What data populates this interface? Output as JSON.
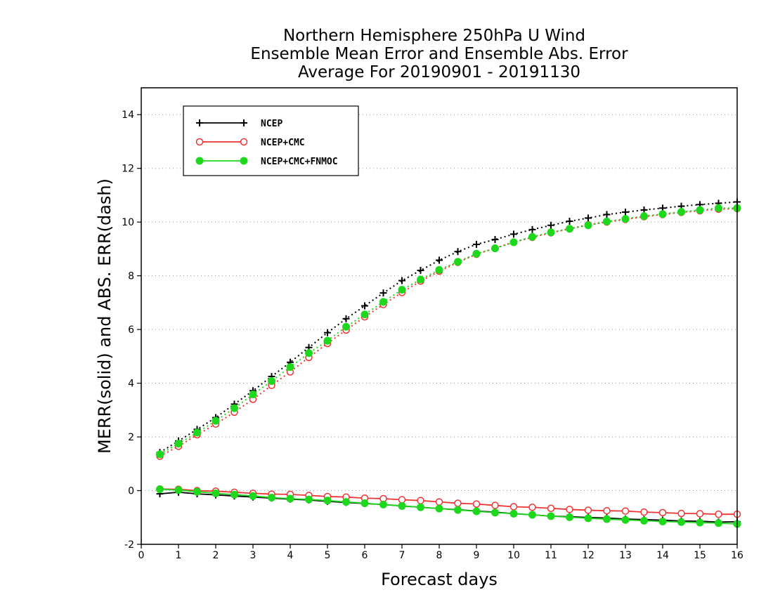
{
  "chart_data": {
    "type": "line",
    "title": [
      "Northern Hemisphere 250hPa U Wind",
      "Ensemble Mean Error and Ensemble Abs. Error",
      "Average For 20190901 - 20191130"
    ],
    "xlabel": "Forecast days",
    "ylabel": "MERR(solid) and ABS. ERR(dash)",
    "xlim": [
      0,
      16
    ],
    "ylim": [
      -2,
      15
    ],
    "xticks": [
      "0",
      "1",
      "2",
      "3",
      "4",
      "5",
      "6",
      "7",
      "8",
      "9",
      "10",
      "11",
      "12",
      "13",
      "14",
      "15",
      "16"
    ],
    "yticks": [
      "-2",
      "0",
      "2",
      "4",
      "6",
      "8",
      "10",
      "12",
      "14"
    ],
    "grid": "horizontal dotted",
    "legend_position": "top-left",
    "x": [
      0.5,
      1,
      1.5,
      2,
      2.5,
      3,
      3.5,
      4,
      4.5,
      5,
      5.5,
      6,
      6.5,
      7,
      7.5,
      8,
      8.5,
      9,
      9.5,
      10,
      10.5,
      11,
      11.5,
      12,
      12.5,
      13,
      13.5,
      14,
      14.5,
      15,
      15.5,
      16
    ],
    "series": [
      {
        "name": "NCEP",
        "color": "#000000",
        "marker": "plus",
        "merr": [
          -0.12,
          -0.06,
          -0.12,
          -0.16,
          -0.2,
          -0.24,
          -0.28,
          -0.32,
          -0.35,
          -0.4,
          -0.44,
          -0.48,
          -0.52,
          -0.57,
          -0.62,
          -0.67,
          -0.71,
          -0.76,
          -0.8,
          -0.86,
          -0.9,
          -0.95,
          -0.97,
          -1.0,
          -1.02,
          -1.06,
          -1.08,
          -1.1,
          -1.13,
          -1.14,
          -1.17,
          -1.16
        ],
        "abs_err": [
          1.42,
          1.85,
          2.28,
          2.72,
          3.22,
          3.72,
          4.25,
          4.78,
          5.33,
          5.88,
          6.4,
          6.88,
          7.36,
          7.82,
          8.2,
          8.58,
          8.9,
          9.17,
          9.35,
          9.55,
          9.72,
          9.88,
          10.03,
          10.15,
          10.28,
          10.37,
          10.45,
          10.52,
          10.59,
          10.65,
          10.7,
          10.75
        ]
      },
      {
        "name": "NCEP+CMC",
        "color": "#ee3333",
        "marker": "open-circle",
        "merr": [
          0.06,
          0.05,
          0.0,
          -0.02,
          -0.06,
          -0.1,
          -0.13,
          -0.14,
          -0.18,
          -0.22,
          -0.24,
          -0.28,
          -0.3,
          -0.34,
          -0.37,
          -0.42,
          -0.47,
          -0.5,
          -0.55,
          -0.6,
          -0.62,
          -0.66,
          -0.7,
          -0.73,
          -0.75,
          -0.76,
          -0.8,
          -0.82,
          -0.85,
          -0.86,
          -0.88,
          -0.88
        ],
        "abs_err": [
          1.28,
          1.65,
          2.08,
          2.48,
          2.92,
          3.4,
          3.92,
          4.42,
          4.96,
          5.48,
          5.98,
          6.47,
          6.93,
          7.38,
          7.8,
          8.17,
          8.5,
          8.8,
          9.03,
          9.25,
          9.43,
          9.6,
          9.75,
          9.9,
          10.0,
          10.1,
          10.2,
          10.28,
          10.36,
          10.42,
          10.48,
          10.5
        ]
      },
      {
        "name": "NCEP+CMC+FNMOC",
        "color": "#1ed81e",
        "marker": "filled-circle",
        "merr": [
          0.05,
          0.02,
          -0.04,
          -0.1,
          -0.15,
          -0.2,
          -0.26,
          -0.3,
          -0.33,
          -0.37,
          -0.42,
          -0.47,
          -0.52,
          -0.57,
          -0.62,
          -0.67,
          -0.72,
          -0.77,
          -0.82,
          -0.86,
          -0.9,
          -0.95,
          -0.99,
          -1.03,
          -1.06,
          -1.09,
          -1.12,
          -1.15,
          -1.17,
          -1.19,
          -1.21,
          -1.24
        ],
        "abs_err": [
          1.35,
          1.75,
          2.16,
          2.6,
          3.07,
          3.58,
          4.08,
          4.6,
          5.12,
          5.58,
          6.1,
          6.56,
          7.03,
          7.48,
          7.86,
          8.22,
          8.52,
          8.82,
          9.02,
          9.25,
          9.45,
          9.62,
          9.75,
          9.88,
          10.02,
          10.12,
          10.22,
          10.3,
          10.38,
          10.45,
          10.52,
          10.52
        ]
      }
    ]
  }
}
